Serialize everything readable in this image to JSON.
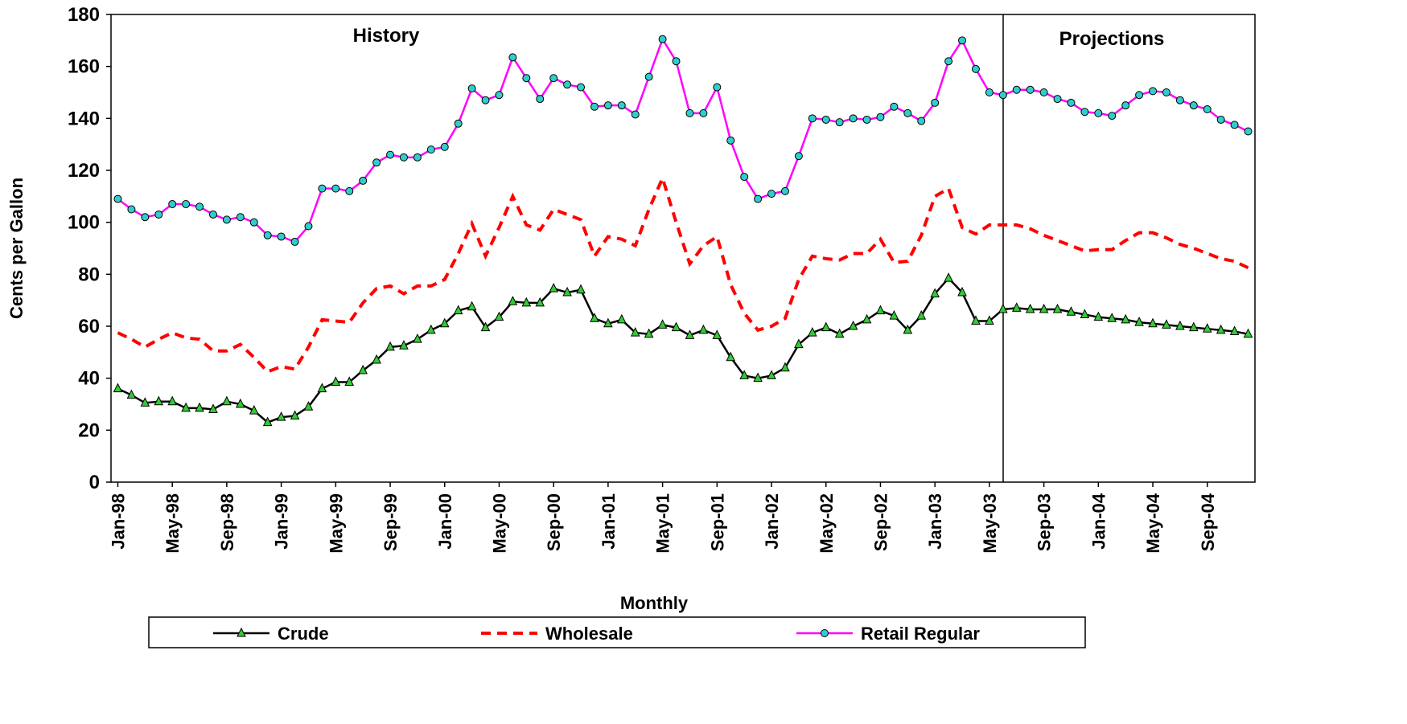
{
  "chart_data": {
    "type": "line",
    "y_label": "Cents per Gallon",
    "x_label": "Monthly",
    "annotations": [
      "History",
      "Projections"
    ],
    "ylim": [
      0,
      180
    ],
    "yticks": [
      0,
      20,
      40,
      60,
      80,
      100,
      120,
      140,
      160,
      180
    ],
    "categories": [
      "Jan-98",
      null,
      null,
      null,
      "May-98",
      null,
      null,
      null,
      "Sep-98",
      null,
      null,
      null,
      "Jan-99",
      null,
      null,
      null,
      "May-99",
      null,
      null,
      null,
      "Sep-99",
      null,
      null,
      null,
      "Jan-00",
      null,
      null,
      null,
      "May-00",
      null,
      null,
      null,
      "Sep-00",
      null,
      null,
      null,
      "Jan-01",
      null,
      null,
      null,
      "May-01",
      null,
      null,
      null,
      "Sep-01",
      null,
      null,
      null,
      "Jan-02",
      null,
      null,
      null,
      "May-02",
      null,
      null,
      null,
      "Sep-02",
      null,
      null,
      null,
      "Jan-03",
      null,
      null,
      null,
      "May-03",
      null,
      null,
      null,
      "Sep-03",
      null,
      null,
      null,
      "Jan-04",
      null,
      null,
      null,
      "May-04",
      null,
      null,
      null,
      "Sep-04",
      null,
      null,
      null
    ],
    "series": [
      {
        "name": "Crude",
        "color": "#000000",
        "marker": "triangle",
        "marker_color": "#33cc33",
        "dashed": false,
        "values": [
          36,
          33.5,
          30.5,
          31,
          31,
          28.5,
          28.5,
          28,
          31,
          30,
          27.5,
          23,
          25,
          25.5,
          29,
          36,
          38.5,
          38.5,
          43,
          47,
          52,
          52.5,
          55,
          58.5,
          61,
          66,
          67.5,
          59.5,
          63.5,
          69.5,
          69,
          69,
          74.5,
          73,
          74,
          63,
          61,
          62.5,
          57.5,
          57,
          60.5,
          59.5,
          56.5,
          58.5,
          56.5,
          48,
          41,
          40,
          41,
          44,
          53,
          57.5,
          59.5,
          57,
          60,
          62.5,
          66,
          64,
          58.5,
          64,
          72.5,
          78.5,
          73,
          62,
          62,
          66.5,
          67,
          66.5,
          66.5,
          66.5,
          65.5,
          64.5,
          63.5,
          63,
          62.5,
          61.5,
          61,
          60.5,
          60,
          59.5,
          59,
          58.5,
          58,
          57
        ]
      },
      {
        "name": "Wholesale",
        "color": "#ff0000",
        "marker": "none",
        "dashed": true,
        "values": [
          57.5,
          55,
          52,
          55,
          57.5,
          55.5,
          55,
          50.5,
          50.5,
          53,
          48,
          42.5,
          44.5,
          43.5,
          52,
          62.5,
          62,
          61.5,
          69,
          74.5,
          75.5,
          72.5,
          75.5,
          75.5,
          78,
          88,
          99.5,
          87,
          98,
          110,
          99,
          97,
          105,
          103,
          101,
          87,
          94.5,
          93.5,
          91,
          105,
          117,
          100,
          84,
          91,
          94.5,
          76,
          65,
          58.5,
          60,
          63,
          78,
          87,
          86,
          85.5,
          88,
          88,
          93.5,
          84.5,
          85,
          95,
          110,
          113,
          98,
          95.5,
          99,
          99,
          99,
          97.5,
          95,
          93,
          91,
          89,
          89.5,
          89.5,
          93,
          96,
          96,
          94,
          91.5,
          90,
          88,
          86,
          85,
          82.5
        ]
      },
      {
        "name": "Retail Regular",
        "color": "#ff00ff",
        "marker": "circle",
        "marker_color": "#33cccc",
        "dashed": false,
        "values": [
          109,
          105,
          102,
          103,
          107,
          107,
          106,
          103,
          101,
          102,
          100,
          95,
          94.5,
          92.5,
          98.5,
          113,
          113,
          112,
          116,
          123,
          126,
          125,
          125,
          128,
          129,
          138,
          151.5,
          147,
          149,
          163.5,
          155.5,
          147.5,
          155.5,
          153,
          152,
          144.5,
          145,
          145,
          141.5,
          156,
          170.5,
          162,
          142,
          142,
          152,
          131.5,
          117.5,
          109,
          111,
          112,
          125.5,
          140,
          139.5,
          138.5,
          140,
          139.5,
          140.5,
          144.5,
          142,
          139,
          146,
          162,
          170,
          159,
          150,
          149,
          151,
          151,
          150,
          147.5,
          146,
          142.5,
          142,
          141,
          145,
          149,
          150.5,
          150,
          147,
          145,
          143.5,
          139.5,
          137.5,
          135
        ]
      }
    ]
  }
}
